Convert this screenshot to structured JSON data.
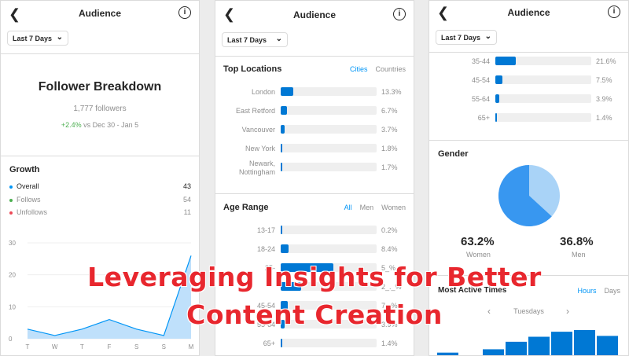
{
  "header": {
    "title": "Audience",
    "back_glyph": "❮",
    "info_glyph": "i"
  },
  "range_filter": {
    "selected": "Last 7 Days"
  },
  "panel1": {
    "heading": "Follower Breakdown",
    "followers": "1,777 followers",
    "change": "+2.4%",
    "change_suffix": "vs Dec 30 - Jan 5",
    "growth": {
      "title": "Growth",
      "items": [
        {
          "label": "Overall",
          "value": "43",
          "color": "#0095f6"
        },
        {
          "label": "Follows",
          "value": "54",
          "color": "#4caf50"
        },
        {
          "label": "Unfollows",
          "value": "11",
          "color": "#ed4956"
        }
      ]
    }
  },
  "chart_data": {
    "type": "area",
    "categories": [
      "T",
      "W",
      "T",
      "F",
      "S",
      "S",
      "M"
    ],
    "values": [
      3,
      1,
      3,
      6,
      3,
      1,
      26
    ],
    "y_ticks": [
      "0",
      "10",
      "20",
      "30"
    ],
    "ylim": [
      0,
      30
    ],
    "grid": true,
    "color": "#0095f6"
  },
  "locations": {
    "title": "Top Locations",
    "tabs": [
      "Cities",
      "Countries"
    ],
    "active_tab": "Cities",
    "rows": [
      {
        "label": "London",
        "pct": "13.3%",
        "value": 13.3
      },
      {
        "label": "East Retford",
        "pct": "6.7%",
        "value": 6.7
      },
      {
        "label": "Vancouver",
        "pct": "3.7%",
        "value": 3.7
      },
      {
        "label": "New York",
        "pct": "1.8%",
        "value": 1.8
      },
      {
        "label_1": "Newark,",
        "label_2": "Nottingham",
        "pct": "1.7%",
        "value": 1.7
      }
    ]
  },
  "age_range": {
    "title": "Age Range",
    "tabs": [
      "All",
      "Men",
      "Women"
    ],
    "active_tab": "All",
    "rows": [
      {
        "label": "13-17",
        "pct": "0.2%",
        "value": 0.2
      },
      {
        "label": "18-24",
        "pct": "8.4%",
        "value": 8.4
      },
      {
        "label": "25-",
        "pct": "5_%",
        "value": 55
      },
      {
        "label": "",
        "pct": "2_._%",
        "value": 21.6
      },
      {
        "label": "45-54",
        "pct": "7._%",
        "value": 7.5
      },
      {
        "label": "55-64",
        "pct": "3.9%",
        "value": 3.9
      },
      {
        "label": "65+",
        "pct": "1.4%",
        "value": 1.4
      }
    ]
  },
  "age_range_continued": {
    "rows": [
      {
        "label": "35-44",
        "pct": "21.6%",
        "value": 21.6
      },
      {
        "label": "45-54",
        "pct": "7.5%",
        "value": 7.5
      },
      {
        "label": "55-64",
        "pct": "3.9%",
        "value": 3.9
      },
      {
        "label": "65+",
        "pct": "1.4%",
        "value": 1.4
      }
    ]
  },
  "gender": {
    "title": "Gender",
    "women_pct": "63.2%",
    "women_label": "Women",
    "men_pct": "36.8%",
    "men_label": "Men",
    "women_value": 63.2,
    "women_color": "#3897f0",
    "men_color": "#a9d3f7"
  },
  "active_times": {
    "title": "Most Active Times",
    "tabs": [
      "Hours",
      "Days"
    ],
    "active_tab": "Hours",
    "day": "Tuesdays",
    "bars": [
      5,
      1,
      9,
      18,
      24,
      30,
      32,
      25
    ]
  },
  "caption": {
    "line1": "Leveraging Insights for Better",
    "line2": "Content Creation"
  }
}
